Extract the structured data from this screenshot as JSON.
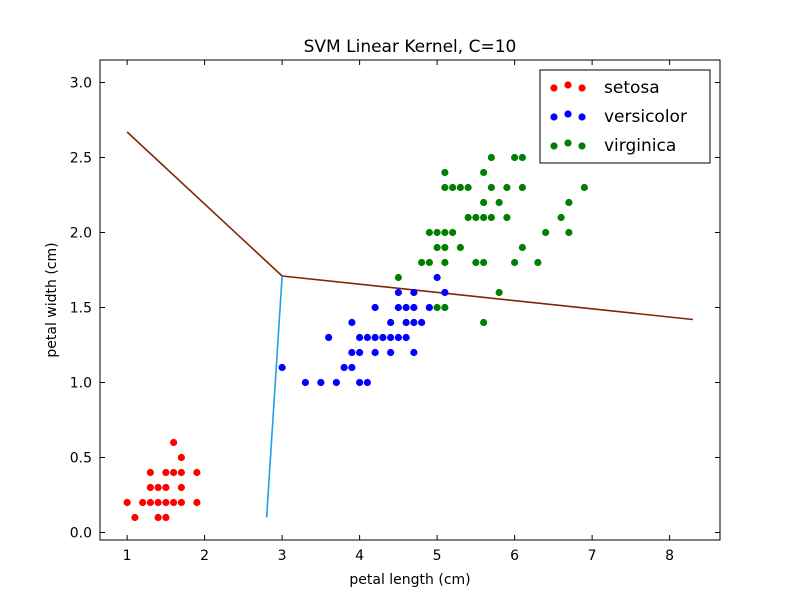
{
  "chart_data": {
    "type": "scatter",
    "title": "SVM Linear Kernel, C=10",
    "xlabel": "petal length (cm)",
    "ylabel": "petal width (cm)",
    "xlim": [
      0.65,
      8.65
    ],
    "ylim": [
      -0.05,
      3.15
    ],
    "xticks": [
      1,
      2,
      3,
      4,
      5,
      6,
      7,
      8
    ],
    "xtick_labels": [
      "1",
      "2",
      "3",
      "4",
      "5",
      "6",
      "7",
      "8"
    ],
    "yticks": [
      0.0,
      0.5,
      1.0,
      1.5,
      2.0,
      2.5,
      3.0
    ],
    "ytick_labels": [
      "0.0",
      "0.5",
      "1.0",
      "1.5",
      "2.0",
      "2.5",
      "3.0"
    ],
    "grid": false,
    "legend": "top-right",
    "series": [
      {
        "name": "setosa",
        "color": "#ff0000",
        "points": [
          [
            1.0,
            0.2
          ],
          [
            1.1,
            0.1
          ],
          [
            1.2,
            0.2
          ],
          [
            1.3,
            0.2
          ],
          [
            1.3,
            0.3
          ],
          [
            1.3,
            0.4
          ],
          [
            1.4,
            0.1
          ],
          [
            1.4,
            0.2
          ],
          [
            1.4,
            0.3
          ],
          [
            1.5,
            0.1
          ],
          [
            1.5,
            0.2
          ],
          [
            1.5,
            0.3
          ],
          [
            1.5,
            0.4
          ],
          [
            1.6,
            0.2
          ],
          [
            1.6,
            0.4
          ],
          [
            1.6,
            0.6
          ],
          [
            1.7,
            0.2
          ],
          [
            1.7,
            0.3
          ],
          [
            1.7,
            0.4
          ],
          [
            1.7,
            0.5
          ],
          [
            1.9,
            0.2
          ],
          [
            1.9,
            0.4
          ]
        ]
      },
      {
        "name": "versicolor",
        "color": "#0000ff",
        "points": [
          [
            3.0,
            1.1
          ],
          [
            3.3,
            1.0
          ],
          [
            3.5,
            1.0
          ],
          [
            3.6,
            1.3
          ],
          [
            3.7,
            1.0
          ],
          [
            3.8,
            1.1
          ],
          [
            3.9,
            1.1
          ],
          [
            3.9,
            1.2
          ],
          [
            3.9,
            1.4
          ],
          [
            4.0,
            1.0
          ],
          [
            4.0,
            1.2
          ],
          [
            4.0,
            1.3
          ],
          [
            4.1,
            1.0
          ],
          [
            4.1,
            1.3
          ],
          [
            4.2,
            1.2
          ],
          [
            4.2,
            1.3
          ],
          [
            4.2,
            1.5
          ],
          [
            4.3,
            1.3
          ],
          [
            4.4,
            1.2
          ],
          [
            4.4,
            1.3
          ],
          [
            4.4,
            1.4
          ],
          [
            4.5,
            1.3
          ],
          [
            4.5,
            1.5
          ],
          [
            4.5,
            1.6
          ],
          [
            4.6,
            1.3
          ],
          [
            4.6,
            1.4
          ],
          [
            4.6,
            1.5
          ],
          [
            4.7,
            1.2
          ],
          [
            4.7,
            1.4
          ],
          [
            4.7,
            1.5
          ],
          [
            4.7,
            1.6
          ],
          [
            4.8,
            1.4
          ],
          [
            4.9,
            1.5
          ],
          [
            5.0,
            1.7
          ],
          [
            5.1,
            1.6
          ]
        ]
      },
      {
        "name": "virginica",
        "color": "#008000",
        "points": [
          [
            4.5,
            1.7
          ],
          [
            4.8,
            1.8
          ],
          [
            4.9,
            1.8
          ],
          [
            4.9,
            2.0
          ],
          [
            5.0,
            1.5
          ],
          [
            5.0,
            1.9
          ],
          [
            5.0,
            2.0
          ],
          [
            5.1,
            1.5
          ],
          [
            5.1,
            1.8
          ],
          [
            5.1,
            1.9
          ],
          [
            5.1,
            2.0
          ],
          [
            5.1,
            2.3
          ],
          [
            5.1,
            2.4
          ],
          [
            5.2,
            2.0
          ],
          [
            5.2,
            2.3
          ],
          [
            5.3,
            1.9
          ],
          [
            5.3,
            2.3
          ],
          [
            5.4,
            2.1
          ],
          [
            5.4,
            2.3
          ],
          [
            5.5,
            1.8
          ],
          [
            5.5,
            2.1
          ],
          [
            5.6,
            1.4
          ],
          [
            5.6,
            1.8
          ],
          [
            5.6,
            2.1
          ],
          [
            5.6,
            2.2
          ],
          [
            5.6,
            2.4
          ],
          [
            5.7,
            2.1
          ],
          [
            5.7,
            2.3
          ],
          [
            5.7,
            2.5
          ],
          [
            5.8,
            1.6
          ],
          [
            5.8,
            2.2
          ],
          [
            5.9,
            2.1
          ],
          [
            5.9,
            2.3
          ],
          [
            6.0,
            1.8
          ],
          [
            6.0,
            2.5
          ],
          [
            6.1,
            1.9
          ],
          [
            6.1,
            2.3
          ],
          [
            6.1,
            2.5
          ],
          [
            6.3,
            1.8
          ],
          [
            6.4,
            2.0
          ],
          [
            6.6,
            2.1
          ],
          [
            6.7,
            2.0
          ],
          [
            6.7,
            2.2
          ],
          [
            6.9,
            2.3
          ]
        ]
      }
    ],
    "lines": [
      {
        "name": "",
        "color": "#7f2704",
        "points": [
          [
            1.0,
            2.67
          ],
          [
            3.0,
            1.71
          ]
        ]
      },
      {
        "name": "",
        "color": "#7f2704",
        "points": [
          [
            3.0,
            1.71
          ],
          [
            8.3,
            1.42
          ]
        ]
      },
      {
        "name": "",
        "color": "#1e9fe8",
        "points": [
          [
            3.0,
            1.71
          ],
          [
            2.8,
            0.1
          ]
        ]
      }
    ]
  }
}
